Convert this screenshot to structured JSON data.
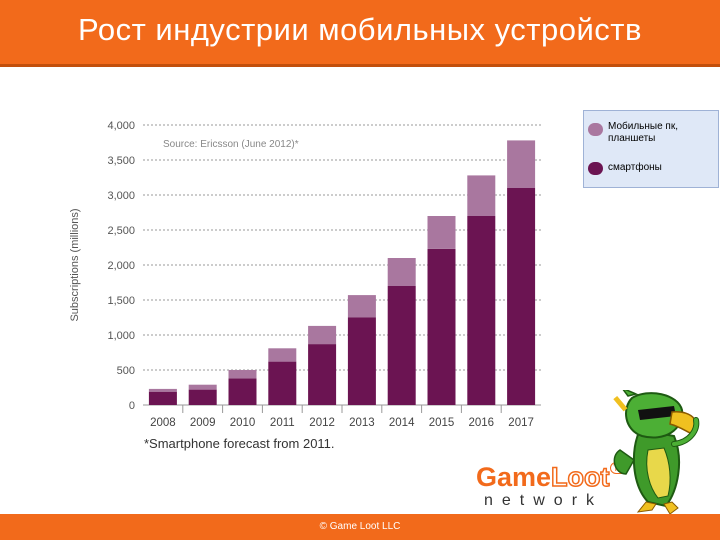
{
  "header": {
    "title": "Рост индустрии мобильных устройств"
  },
  "footer": {
    "copyright": "© Game Loot LLC"
  },
  "legend": {
    "items": [
      {
        "label": "Мобильные пк, планшеты",
        "color": "#a9779f"
      },
      {
        "label": "смартфоны",
        "color": "#6b1452"
      }
    ]
  },
  "logo": {
    "word1": "Game",
    "word2": "Loot",
    "tm": "TM",
    "tagline": "network"
  },
  "chart_data": {
    "type": "bar",
    "stacked": true,
    "title": "",
    "source": "Source: Ericsson (June 2012)*",
    "footnote": "*Smartphone forecast from 2011.",
    "xlabel": "",
    "ylabel": "Subscriptions (millions)",
    "ylim": [
      0,
      4000
    ],
    "yticks": [
      "0",
      "500",
      "1,000",
      "1,500",
      "2,000",
      "2,500",
      "3,000",
      "3,500",
      "4,000"
    ],
    "ytick_values": [
      0,
      500,
      1000,
      1500,
      2000,
      2500,
      3000,
      3500,
      4000
    ],
    "grid": true,
    "categories": [
      "2008",
      "2009",
      "2010",
      "2011",
      "2012",
      "2013",
      "2014",
      "2015",
      "2016",
      "2017"
    ],
    "series": [
      {
        "name": "смартфоны",
        "color": "#6b1452",
        "values": [
          190,
          220,
          380,
          620,
          870,
          1250,
          1700,
          2230,
          2700,
          3100
        ]
      },
      {
        "name": "Мобильные пк, планшеты",
        "color": "#a9779f",
        "values": [
          40,
          70,
          120,
          190,
          260,
          320,
          400,
          470,
          580,
          680
        ]
      }
    ]
  }
}
